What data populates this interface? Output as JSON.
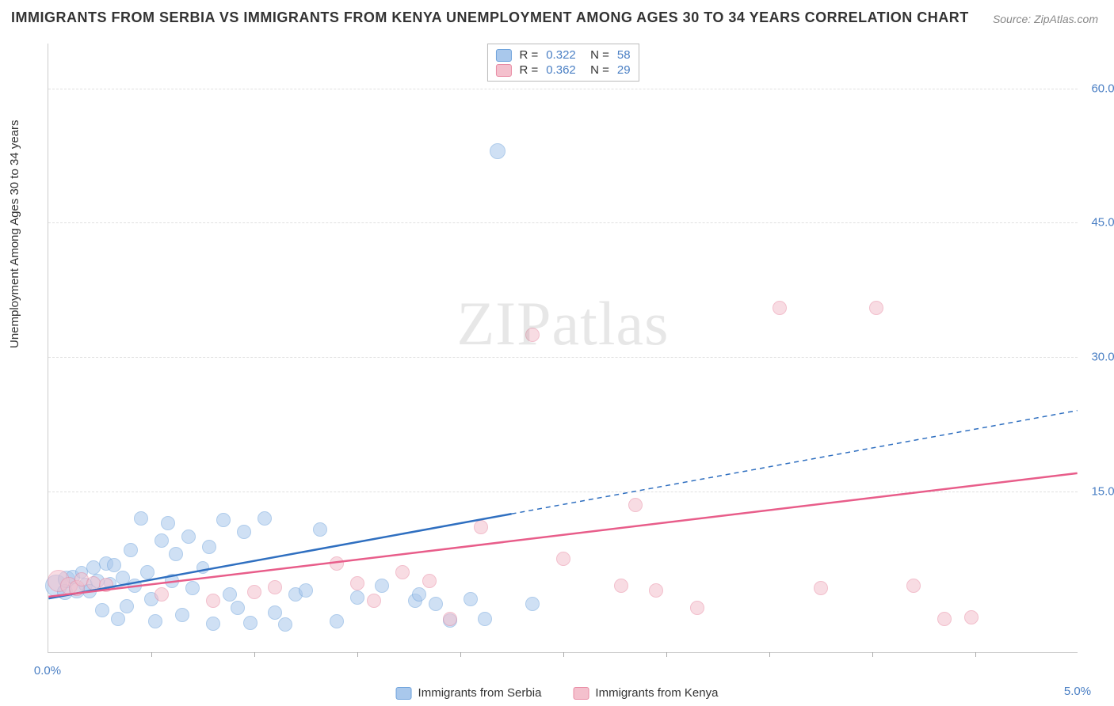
{
  "title": "IMMIGRANTS FROM SERBIA VS IMMIGRANTS FROM KENYA UNEMPLOYMENT AMONG AGES 30 TO 34 YEARS CORRELATION CHART",
  "source": "Source: ZipAtlas.com",
  "y_axis_label": "Unemployment Among Ages 30 to 34 years",
  "watermark": "ZIPatlas",
  "chart": {
    "type": "scatter",
    "xlim": [
      0.0,
      5.0
    ],
    "ylim": [
      -3.0,
      65.0
    ],
    "x_ticks": [
      0.0,
      5.0
    ],
    "x_tick_labels": [
      "0.0%",
      "5.0%"
    ],
    "x_minor_ticks": [
      0.5,
      1.0,
      1.5,
      2.0,
      2.5,
      3.0,
      3.5,
      4.0,
      4.5
    ],
    "y_ticks": [
      15.0,
      30.0,
      45.0,
      60.0
    ],
    "y_tick_labels": [
      "15.0%",
      "30.0%",
      "45.0%",
      "60.0%"
    ],
    "background_color": "#ffffff",
    "grid_color": "#e0e0e0",
    "grid_dash": "4,4",
    "series": [
      {
        "name": "Immigrants from Serbia",
        "fill_color": "#a9c8ec",
        "stroke_color": "#6fa3dc",
        "fill_opacity": 0.55,
        "marker_radius": 9,
        "trend_color": "#2f6fc0",
        "trend_width": 2.5,
        "trend_dash_after_x": 2.25,
        "trend": {
          "x1": 0.0,
          "y1": 3.0,
          "x2": 5.0,
          "y2": 24.0
        },
        "R": "0.322",
        "N": "58",
        "points": [
          {
            "x": 0.04,
            "y": 4.5,
            "r": 14
          },
          {
            "x": 0.08,
            "y": 3.8,
            "r": 10
          },
          {
            "x": 0.09,
            "y": 5.2,
            "r": 11
          },
          {
            "x": 0.12,
            "y": 5.5,
            "r": 9
          },
          {
            "x": 0.14,
            "y": 4.0,
            "r": 10
          },
          {
            "x": 0.16,
            "y": 6.0,
            "r": 8
          },
          {
            "x": 0.18,
            "y": 4.6,
            "r": 9
          },
          {
            "x": 0.2,
            "y": 3.9,
            "r": 9
          },
          {
            "x": 0.22,
            "y": 6.5,
            "r": 9
          },
          {
            "x": 0.24,
            "y": 5.0,
            "r": 9
          },
          {
            "x": 0.26,
            "y": 1.8,
            "r": 9
          },
          {
            "x": 0.28,
            "y": 7.0,
            "r": 9
          },
          {
            "x": 0.3,
            "y": 4.8,
            "r": 8
          },
          {
            "x": 0.32,
            "y": 6.8,
            "r": 9
          },
          {
            "x": 0.34,
            "y": 0.8,
            "r": 9
          },
          {
            "x": 0.36,
            "y": 5.4,
            "r": 9
          },
          {
            "x": 0.38,
            "y": 2.2,
            "r": 9
          },
          {
            "x": 0.4,
            "y": 8.5,
            "r": 9
          },
          {
            "x": 0.42,
            "y": 4.5,
            "r": 9
          },
          {
            "x": 0.45,
            "y": 12.0,
            "r": 9
          },
          {
            "x": 0.48,
            "y": 6.0,
            "r": 9
          },
          {
            "x": 0.5,
            "y": 3.0,
            "r": 9
          },
          {
            "x": 0.52,
            "y": 0.5,
            "r": 9
          },
          {
            "x": 0.55,
            "y": 9.5,
            "r": 9
          },
          {
            "x": 0.58,
            "y": 11.5,
            "r": 9
          },
          {
            "x": 0.6,
            "y": 5.0,
            "r": 9
          },
          {
            "x": 0.62,
            "y": 8.0,
            "r": 9
          },
          {
            "x": 0.65,
            "y": 1.2,
            "r": 9
          },
          {
            "x": 0.68,
            "y": 10.0,
            "r": 9
          },
          {
            "x": 0.7,
            "y": 4.2,
            "r": 9
          },
          {
            "x": 0.75,
            "y": 6.5,
            "r": 8
          },
          {
            "x": 0.78,
            "y": 8.8,
            "r": 9
          },
          {
            "x": 0.8,
            "y": 0.3,
            "r": 9
          },
          {
            "x": 0.85,
            "y": 11.8,
            "r": 9
          },
          {
            "x": 0.88,
            "y": 3.5,
            "r": 9
          },
          {
            "x": 0.92,
            "y": 2.0,
            "r": 9
          },
          {
            "x": 0.95,
            "y": 10.5,
            "r": 9
          },
          {
            "x": 0.98,
            "y": 0.4,
            "r": 9
          },
          {
            "x": 1.05,
            "y": 12.0,
            "r": 9
          },
          {
            "x": 1.1,
            "y": 1.5,
            "r": 9
          },
          {
            "x": 1.15,
            "y": 0.2,
            "r": 9
          },
          {
            "x": 1.2,
            "y": 3.5,
            "r": 9
          },
          {
            "x": 1.25,
            "y": 4.0,
            "r": 9
          },
          {
            "x": 1.32,
            "y": 10.8,
            "r": 9
          },
          {
            "x": 1.4,
            "y": 0.5,
            "r": 9
          },
          {
            "x": 1.5,
            "y": 3.2,
            "r": 9
          },
          {
            "x": 1.62,
            "y": 4.5,
            "r": 9
          },
          {
            "x": 1.78,
            "y": 2.8,
            "r": 9
          },
          {
            "x": 1.8,
            "y": 3.5,
            "r": 9
          },
          {
            "x": 1.88,
            "y": 2.5,
            "r": 9
          },
          {
            "x": 1.95,
            "y": 0.6,
            "r": 9
          },
          {
            "x": 2.05,
            "y": 3.0,
            "r": 9
          },
          {
            "x": 2.12,
            "y": 0.8,
            "r": 9
          },
          {
            "x": 2.18,
            "y": 53.0,
            "r": 10
          },
          {
            "x": 2.35,
            "y": 2.5,
            "r": 9
          }
        ]
      },
      {
        "name": "Immigrants from Kenya",
        "fill_color": "#f4c0cd",
        "stroke_color": "#e88ba4",
        "fill_opacity": 0.55,
        "marker_radius": 9,
        "trend_color": "#e85d8a",
        "trend_width": 2.5,
        "trend_dash_after_x": 5.0,
        "trend": {
          "x1": 0.0,
          "y1": 3.2,
          "x2": 5.0,
          "y2": 17.0
        },
        "R": "0.362",
        "N": "29",
        "points": [
          {
            "x": 0.05,
            "y": 5.0,
            "r": 14
          },
          {
            "x": 0.1,
            "y": 4.5,
            "r": 11
          },
          {
            "x": 0.14,
            "y": 4.2,
            "r": 10
          },
          {
            "x": 0.16,
            "y": 5.2,
            "r": 9
          },
          {
            "x": 0.22,
            "y": 4.8,
            "r": 9
          },
          {
            "x": 0.28,
            "y": 4.6,
            "r": 9
          },
          {
            "x": 0.55,
            "y": 3.5,
            "r": 9
          },
          {
            "x": 0.8,
            "y": 2.8,
            "r": 9
          },
          {
            "x": 1.0,
            "y": 3.8,
            "r": 9
          },
          {
            "x": 1.1,
            "y": 4.3,
            "r": 9
          },
          {
            "x": 1.4,
            "y": 7.0,
            "r": 9
          },
          {
            "x": 1.5,
            "y": 4.8,
            "r": 9
          },
          {
            "x": 1.58,
            "y": 2.8,
            "r": 9
          },
          {
            "x": 1.72,
            "y": 6.0,
            "r": 9
          },
          {
            "x": 1.85,
            "y": 5.0,
            "r": 9
          },
          {
            "x": 1.95,
            "y": 0.8,
            "r": 9
          },
          {
            "x": 2.1,
            "y": 11.0,
            "r": 9
          },
          {
            "x": 2.35,
            "y": 32.5,
            "r": 9
          },
          {
            "x": 2.5,
            "y": 7.5,
            "r": 9
          },
          {
            "x": 2.78,
            "y": 4.5,
            "r": 9
          },
          {
            "x": 2.85,
            "y": 13.5,
            "r": 9
          },
          {
            "x": 2.95,
            "y": 4.0,
            "r": 9
          },
          {
            "x": 3.15,
            "y": 2.0,
            "r": 9
          },
          {
            "x": 3.55,
            "y": 35.5,
            "r": 9
          },
          {
            "x": 3.75,
            "y": 4.2,
            "r": 9
          },
          {
            "x": 4.02,
            "y": 35.5,
            "r": 9
          },
          {
            "x": 4.2,
            "y": 4.5,
            "r": 9
          },
          {
            "x": 4.35,
            "y": 0.8,
            "r": 9
          },
          {
            "x": 4.48,
            "y": 1.0,
            "r": 9
          }
        ]
      }
    ]
  },
  "legend_bottom": [
    {
      "label": "Immigrants from Serbia",
      "fill": "#a9c8ec",
      "stroke": "#6fa3dc"
    },
    {
      "label": "Immigrants from Kenya",
      "fill": "#f4c0cd",
      "stroke": "#e88ba4"
    }
  ]
}
